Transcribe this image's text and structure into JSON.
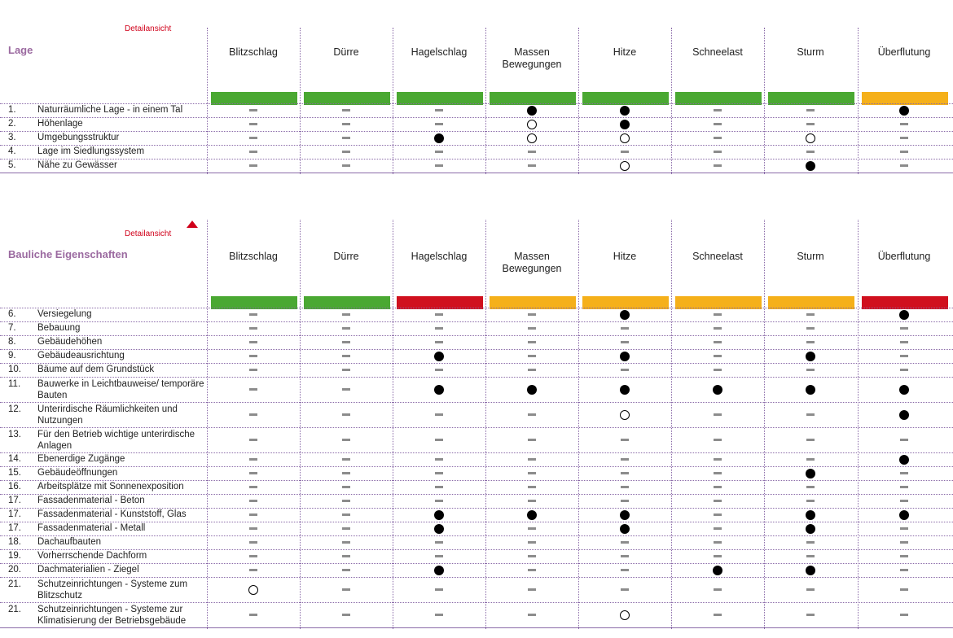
{
  "columns": [
    "Blitzschlag",
    "Dürre",
    "Hagelschlag",
    "Massen\nBewegungen",
    "Hitze",
    "Schneelast",
    "Sturm",
    "Überflutung"
  ],
  "legend_colors": {
    "green": "#4aa832",
    "orange": "#f5b01a",
    "red": "#d0101e"
  },
  "sections": [
    {
      "detail_link": "Detailansicht",
      "title": "Lage",
      "has_collapse_icon": false,
      "bars": [
        "green",
        "green",
        "green",
        "green",
        "green",
        "green",
        "green",
        "orange"
      ],
      "rows": [
        {
          "num": "1.",
          "label": "Naturräumliche Lage - in einem Tal",
          "marks": [
            "dash",
            "dash",
            "dash",
            "dot",
            "dot",
            "dash",
            "dash",
            "dot"
          ]
        },
        {
          "num": "2.",
          "label": "Höhenlage",
          "marks": [
            "dash",
            "dash",
            "dash",
            "ring",
            "dot",
            "dash",
            "dash",
            "dash"
          ]
        },
        {
          "num": "3.",
          "label": "Umgebungsstruktur",
          "marks": [
            "dash",
            "dash",
            "dot",
            "ring",
            "ring",
            "dash",
            "ring",
            "dash"
          ]
        },
        {
          "num": "4.",
          "label": "Lage im Siedlungssystem",
          "marks": [
            "dash",
            "dash",
            "dash",
            "dash",
            "dash",
            "dash",
            "dash",
            "dash"
          ]
        },
        {
          "num": "5.",
          "label": "Nähe zu Gewässer",
          "marks": [
            "dash",
            "dash",
            "dash",
            "dash",
            "ring",
            "dash",
            "dot",
            "dash"
          ]
        }
      ]
    },
    {
      "detail_link": "Detailansicht",
      "title": "Bauliche Eigenschaften",
      "has_collapse_icon": true,
      "bars": [
        "green",
        "green",
        "red",
        "orange",
        "orange",
        "orange",
        "orange",
        "red"
      ],
      "rows": [
        {
          "num": "6.",
          "label": "Versiegelung",
          "marks": [
            "dash",
            "dash",
            "dash",
            "dash",
            "dot",
            "dash",
            "dash",
            "dot"
          ]
        },
        {
          "num": "7.",
          "label": "Bebauung",
          "marks": [
            "dash",
            "dash",
            "dash",
            "dash",
            "dash",
            "dash",
            "dash",
            "dash"
          ]
        },
        {
          "num": "8.",
          "label": "Gebäudehöhen",
          "marks": [
            "dash",
            "dash",
            "dash",
            "dash",
            "dash",
            "dash",
            "dash",
            "dash"
          ]
        },
        {
          "num": "9.",
          "label": "Gebäudeausrichtung",
          "marks": [
            "dash",
            "dash",
            "dot",
            "dash",
            "dot",
            "dash",
            "dot",
            "dash"
          ]
        },
        {
          "num": "10.",
          "label": "Bäume auf dem Grundstück",
          "marks": [
            "dash",
            "dash",
            "dash",
            "dash",
            "dash",
            "dash",
            "dash",
            "dash"
          ]
        },
        {
          "num": "11.",
          "label": "Bauwerke in Leichtbauweise/ temporäre Bauten",
          "marks": [
            "dash",
            "dash",
            "dot",
            "dot",
            "dot",
            "dot",
            "dot",
            "dot"
          ]
        },
        {
          "num": "12.",
          "label": "Unterirdische Räumlichkeiten und Nutzungen",
          "marks": [
            "dash",
            "dash",
            "dash",
            "dash",
            "ring",
            "dash",
            "dash",
            "dot"
          ]
        },
        {
          "num": "13.",
          "label": "Für den Betrieb wichtige unterirdische Anlagen",
          "marks": [
            "dash",
            "dash",
            "dash",
            "dash",
            "dash",
            "dash",
            "dash",
            "dash"
          ]
        },
        {
          "num": "14.",
          "label": "Ebenerdige Zugänge",
          "marks": [
            "dash",
            "dash",
            "dash",
            "dash",
            "dash",
            "dash",
            "dash",
            "dot"
          ]
        },
        {
          "num": "15.",
          "label": "Gebäudeöffnungen",
          "marks": [
            "dash",
            "dash",
            "dash",
            "dash",
            "dash",
            "dash",
            "dot",
            "dash"
          ]
        },
        {
          "num": "16.",
          "label": "Arbeitsplätze mit Sonnenexposition",
          "marks": [
            "dash",
            "dash",
            "dash",
            "dash",
            "dash",
            "dash",
            "dash",
            "dash"
          ]
        },
        {
          "num": "17.",
          "label": "Fassadenmaterial - Beton",
          "marks": [
            "dash",
            "dash",
            "dash",
            "dash",
            "dash",
            "dash",
            "dash",
            "dash"
          ]
        },
        {
          "num": "17.",
          "label": "Fassadenmaterial - Kunststoff, Glas",
          "marks": [
            "dash",
            "dash",
            "dot",
            "dot",
            "dot",
            "dash",
            "dot",
            "dot"
          ]
        },
        {
          "num": "17.",
          "label": "Fassadenmaterial - Metall",
          "marks": [
            "dash",
            "dash",
            "dot",
            "dash",
            "dot",
            "dash",
            "dot",
            "dash"
          ]
        },
        {
          "num": "18.",
          "label": "Dachaufbauten",
          "marks": [
            "dash",
            "dash",
            "dash",
            "dash",
            "dash",
            "dash",
            "dash",
            "dash"
          ]
        },
        {
          "num": "19.",
          "label": "Vorherrschende Dachform",
          "marks": [
            "dash",
            "dash",
            "dash",
            "dash",
            "dash",
            "dash",
            "dash",
            "dash"
          ]
        },
        {
          "num": "20.",
          "label": "Dachmaterialien - Ziegel",
          "marks": [
            "dash",
            "dash",
            "dot",
            "dash",
            "dash",
            "dot",
            "dot",
            "dash"
          ]
        },
        {
          "num": "21.",
          "label": "Schutzeinrichtungen - Systeme zum Blitzschutz",
          "marks": [
            "ring",
            "dash",
            "dash",
            "dash",
            "dash",
            "dash",
            "dash",
            "dash"
          ]
        },
        {
          "num": "21.",
          "label": "Schutzeinrichtungen - Systeme zur Klimatisierung der Betriebsgebäude",
          "marks": [
            "dash",
            "dash",
            "dash",
            "dash",
            "ring",
            "dash",
            "dash",
            "dash"
          ]
        }
      ]
    }
  ]
}
